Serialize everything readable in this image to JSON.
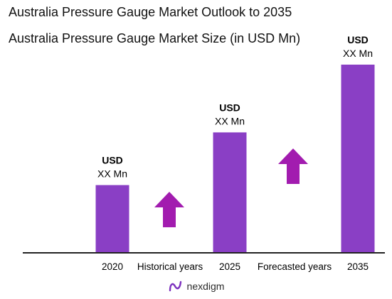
{
  "header": {
    "title": "Australia Pressure Gauge  Market Outlook to 2035"
  },
  "chart_data": {
    "type": "bar",
    "title": "Australia Pressure Gauge Market Size (in USD Mn)",
    "categories": [
      "2020",
      "2025",
      "2035"
    ],
    "values": [
      0.36,
      0.64,
      1.0
    ],
    "bar_labels": [
      {
        "line1": "USD",
        "line2": "XX Mn"
      },
      {
        "line1": "USD",
        "line2": "XX Mn"
      },
      {
        "line1": "USD",
        "line2": "XX Mn"
      }
    ],
    "annotations": [
      {
        "text": "Historical years",
        "between": [
          "2020",
          "2025"
        ],
        "arrow": "up"
      },
      {
        "text": "Forecasted years",
        "between": [
          "2025",
          "2035"
        ],
        "arrow": "up"
      }
    ],
    "ylim": [
      0,
      1
    ],
    "grid": false,
    "colors": {
      "bar": "#8A3FC5",
      "arrow": "#A21CAF",
      "axis": "#222222"
    }
  },
  "footer": {
    "brand": "nexdigm",
    "logo_icon": "nexdigm-logo-icon"
  }
}
